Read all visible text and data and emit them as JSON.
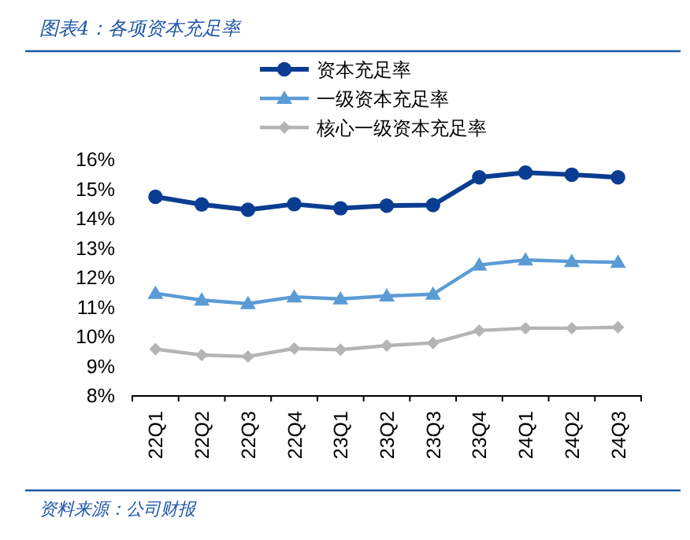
{
  "chart_data": {
    "type": "line",
    "title": "图表4：各项资本充足率",
    "annotations": [
      "资料来源：公司财报"
    ],
    "categories": [
      "22Q1",
      "22Q2",
      "22Q3",
      "22Q4",
      "23Q1",
      "23Q2",
      "23Q3",
      "23Q4",
      "24Q1",
      "24Q2",
      "24Q3"
    ],
    "series": [
      {
        "name": "资本充足率",
        "color": "#0a3d91",
        "marker": "circle",
        "values": [
          14.72,
          14.46,
          14.28,
          14.47,
          14.33,
          14.42,
          14.44,
          15.38,
          15.54,
          15.47,
          15.38
        ]
      },
      {
        "name": "一级资本充足率",
        "color": "#5b9bd5",
        "marker": "triangle",
        "values": [
          11.45,
          11.22,
          11.1,
          11.33,
          11.26,
          11.36,
          11.42,
          12.41,
          12.58,
          12.53,
          12.5
        ]
      },
      {
        "name": "核心一级资本充足率",
        "color": "#b4b4b4",
        "marker": "diamond",
        "values": [
          9.56,
          9.36,
          9.31,
          9.58,
          9.54,
          9.68,
          9.77,
          10.19,
          10.27,
          10.27,
          10.3
        ]
      }
    ],
    "ylim": [
      8,
      16
    ],
    "yticks": [
      {
        "value": 8,
        "label": "8%"
      },
      {
        "value": 9,
        "label": "9%"
      },
      {
        "value": 10,
        "label": "10%"
      },
      {
        "value": 11,
        "label": "11%"
      },
      {
        "value": 12,
        "label": "12%"
      },
      {
        "value": 13,
        "label": "13%"
      },
      {
        "value": 14,
        "label": "14%"
      },
      {
        "value": 15,
        "label": "15%"
      },
      {
        "value": 16,
        "label": "16%"
      }
    ],
    "legend": "top",
    "grid": false,
    "line_style": "solid"
  }
}
